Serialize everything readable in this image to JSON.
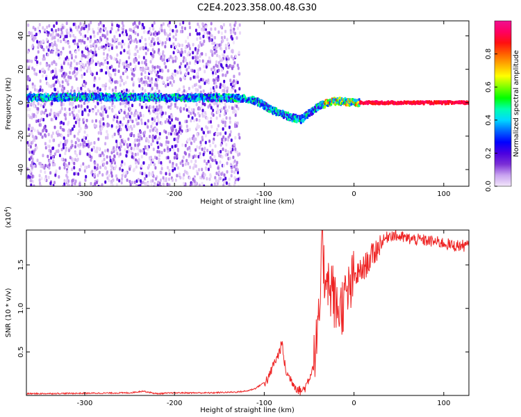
{
  "title": "C2E4.2023.358.00.48.G30",
  "chart_data": [
    {
      "type": "heatmap",
      "xlabel": "Height of straight line (km)",
      "ylabel": "Frequency (Hz)",
      "xlim": [
        -365,
        128
      ],
      "ylim": [
        -50,
        49
      ],
      "xticks": [
        -300,
        -200,
        -100,
        0,
        100
      ],
      "yticks": [
        -40,
        -20,
        0,
        20,
        40
      ],
      "colorbar": {
        "label": "Normalized spectral amplitude",
        "range": [
          0.0,
          1.0
        ],
        "ticks": [
          0.0,
          0.2,
          0.4,
          0.6,
          0.8
        ],
        "colors": [
          "#f2e6fa",
          "#c9a3f0",
          "#7b2fd6",
          "#4b00e0",
          "#0000ff",
          "#0066ff",
          "#00d8ff",
          "#00ffb0",
          "#00ff00",
          "#7fff00",
          "#ffff00",
          "#ffb000",
          "#ff6000",
          "#ff1010",
          "#ff0060",
          "#f01090"
        ]
      },
      "ridge": [
        {
          "x": -360,
          "y": 3
        },
        {
          "x": -300,
          "y": 3.5
        },
        {
          "x": -250,
          "y": 3.5
        },
        {
          "x": -200,
          "y": 3
        },
        {
          "x": -150,
          "y": 3
        },
        {
          "x": -125,
          "y": 2.5
        },
        {
          "x": -110,
          "y": 1
        },
        {
          "x": -100,
          "y": -2
        },
        {
          "x": -90,
          "y": -5
        },
        {
          "x": -80,
          "y": -7
        },
        {
          "x": -70,
          "y": -9
        },
        {
          "x": -60,
          "y": -10
        },
        {
          "x": -50,
          "y": -6
        },
        {
          "x": -40,
          "y": -2
        },
        {
          "x": -30,
          "y": 0
        },
        {
          "x": -20,
          "y": 1
        },
        {
          "x": -10,
          "y": 0.5
        },
        {
          "x": 0,
          "y": 0
        },
        {
          "x": 128,
          "y": 0
        }
      ],
      "noise_extent": [
        -365,
        -128
      ],
      "strong_amplitude": 0.95
    },
    {
      "type": "line",
      "xlabel": "Height of straight line (km)",
      "ylabel": "SNR (10 * v/v)",
      "yexponent": "(x10",
      "yexponent_power": "4",
      "yexponent_close": ")",
      "xlim": [
        -365,
        128
      ],
      "ylim": [
        0,
        1.9
      ],
      "xticks": [
        -300,
        -200,
        -100,
        0,
        100
      ],
      "yticks": [
        0.5,
        1.0,
        1.5
      ],
      "ytick_labels": [
        "0.5",
        "1.0",
        "1.5"
      ],
      "series": [
        {
          "color": "#ee2222",
          "points": [
            [
              -365,
              0.02
            ],
            [
              -300,
              0.025
            ],
            [
              -250,
              0.03
            ],
            [
              -235,
              0.05
            ],
            [
              -220,
              0.02
            ],
            [
              -200,
              0.03
            ],
            [
              -160,
              0.03
            ],
            [
              -130,
              0.04
            ],
            [
              -120,
              0.05
            ],
            [
              -110,
              0.08
            ],
            [
              -100,
              0.15
            ],
            [
              -95,
              0.2
            ],
            [
              -90,
              0.35
            ],
            [
              -85,
              0.45
            ],
            [
              -80,
              0.6
            ],
            [
              -78,
              0.4
            ],
            [
              -75,
              0.25
            ],
            [
              -70,
              0.18
            ],
            [
              -65,
              0.1
            ],
            [
              -60,
              0.05
            ],
            [
              -55,
              0.08
            ],
            [
              -50,
              0.2
            ],
            [
              -45,
              0.35
            ],
            [
              -40,
              0.7
            ],
            [
              -37,
              1.2
            ],
            [
              -35,
              1.9
            ],
            [
              -33,
              1.3
            ],
            [
              -30,
              1.5
            ],
            [
              -27,
              1.1
            ],
            [
              -25,
              1.3
            ],
            [
              -22,
              1.1
            ],
            [
              -20,
              1.0
            ],
            [
              -15,
              1.0
            ],
            [
              -10,
              1.1
            ],
            [
              -5,
              1.2
            ],
            [
              0,
              1.35
            ],
            [
              10,
              1.45
            ],
            [
              20,
              1.6
            ],
            [
              30,
              1.75
            ],
            [
              40,
              1.85
            ],
            [
              60,
              1.8
            ],
            [
              80,
              1.78
            ],
            [
              100,
              1.75
            ],
            [
              110,
              1.72
            ],
            [
              128,
              1.72
            ]
          ]
        }
      ]
    }
  ]
}
